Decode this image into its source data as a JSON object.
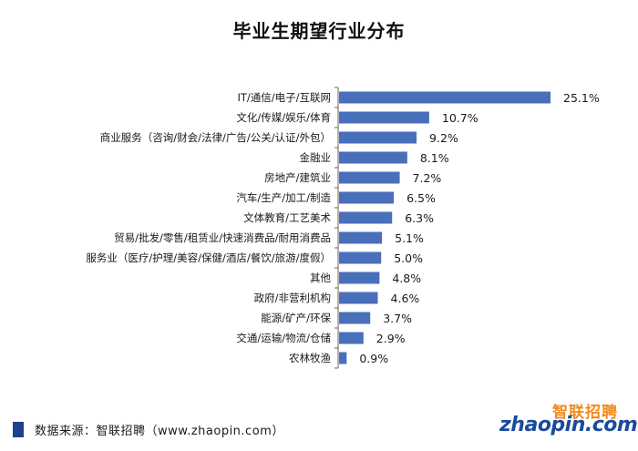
{
  "chart_data": {
    "type": "bar",
    "orientation": "horizontal",
    "title": "毕业生期望行业分布",
    "categories": [
      "IT/通信/电子/互联网",
      "文化/传媒/娱乐/体育",
      "商业服务（咨询/财会/法律/广告/公关/认证/外包）",
      "金融业",
      "房地产/建筑业",
      "汽车/生产/加工/制造",
      "文体教育/工艺美术",
      "贸易/批发/零售/租赁业/快速消费品/耐用消费品",
      "服务业（医疗/护理/美容/保健/酒店/餐饮/旅游/度假）",
      "其他",
      "政府/非营利机构",
      "能源/矿产/环保",
      "交通/运输/物流/仓储",
      "农林牧渔"
    ],
    "values": [
      25.1,
      10.7,
      9.2,
      8.1,
      7.2,
      6.5,
      6.3,
      5.1,
      5.0,
      4.8,
      4.6,
      3.7,
      2.9,
      0.9
    ],
    "labels": [
      "25.1%",
      "10.7%",
      "9.2%",
      "8.1%",
      "7.2%",
      "6.5%",
      "6.3%",
      "5.1%",
      "5.0%",
      "4.8%",
      "4.6%",
      "3.7%",
      "2.9%",
      "0.9%"
    ],
    "unit": "%",
    "xlim": [
      0,
      25.1
    ],
    "grid": false,
    "bar_color": "#4a6fba",
    "axis_color": "#666666"
  },
  "footer": {
    "source": "数据来源：智联招聘（www.zhaopin.com）",
    "legend_color": "#1f3f8f"
  },
  "brand": {
    "name_cn": "智联招聘",
    "name_en": "zhaopin.com",
    "orange": "#f08a1c",
    "blue": "#1b4a9c"
  }
}
